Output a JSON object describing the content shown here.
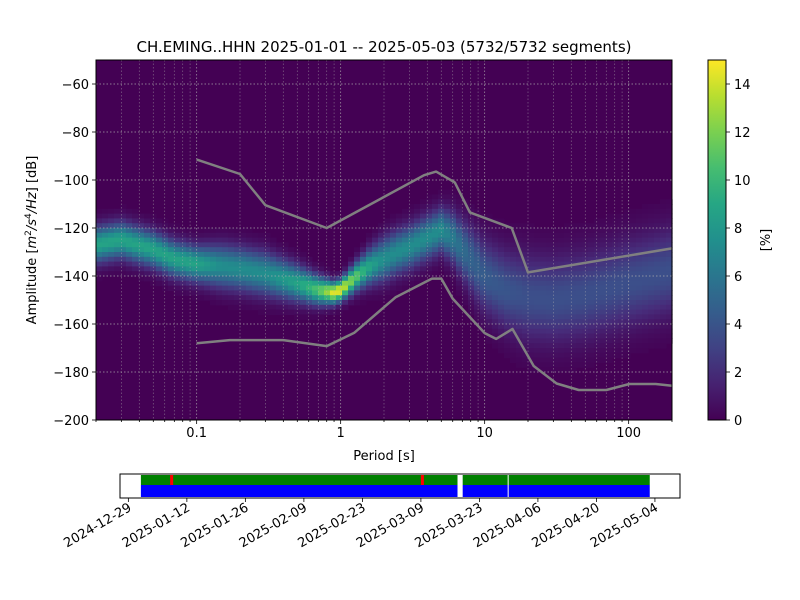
{
  "chart_data": [
    {
      "type": "heatmap",
      "title": "CH.EMING..HHN   2025-01-01 -- 2025-05-03  (5732/5732 segments)",
      "xlabel": "Period [s]",
      "ylabel_parts": [
        "Amplitude [",
        "m",
        "2",
        "/s",
        "4",
        "/Hz",
        "] [dB]"
      ],
      "x_scale": "log",
      "xlim": [
        0.02,
        200
      ],
      "ylim": [
        -200,
        -50
      ],
      "x_ticks": [
        {
          "value": 0.1,
          "label": "0.1"
        },
        {
          "value": 1,
          "label": "1"
        },
        {
          "value": 10,
          "label": "10"
        },
        {
          "value": 100,
          "label": "100"
        }
      ],
      "y_ticks": [
        {
          "value": -60,
          "label": "−60"
        },
        {
          "value": -80,
          "label": "−80"
        },
        {
          "value": -100,
          "label": "−100"
        },
        {
          "value": -120,
          "label": "−120"
        },
        {
          "value": -140,
          "label": "−140"
        },
        {
          "value": -160,
          "label": "−160"
        },
        {
          "value": -180,
          "label": "−180"
        },
        {
          "value": -200,
          "label": "−200"
        }
      ],
      "grid": true,
      "colormap": "viridis",
      "colorbar": {
        "label": "[%]",
        "range": [
          0,
          15
        ],
        "ticks": [
          {
            "value": 0,
            "label": "0"
          },
          {
            "value": 2,
            "label": "2"
          },
          {
            "value": 4,
            "label": "4"
          },
          {
            "value": 6,
            "label": "6"
          },
          {
            "value": 8,
            "label": "8"
          },
          {
            "value": 10,
            "label": "10"
          },
          {
            "value": 12,
            "label": "12"
          },
          {
            "value": 14,
            "label": "14"
          }
        ]
      },
      "psd_mode_curve": {
        "periods": [
          0.02,
          0.03,
          0.05,
          0.07,
          0.1,
          0.15,
          0.2,
          0.3,
          0.5,
          0.7,
          0.9,
          1.0,
          1.3,
          1.6,
          2,
          2.5,
          3,
          4,
          5,
          6,
          8,
          10,
          14,
          20,
          30,
          50,
          100,
          200
        ],
        "db": [
          -127,
          -125,
          -129,
          -133,
          -135,
          -136,
          -137,
          -139,
          -143,
          -146,
          -147,
          -146,
          -140,
          -136,
          -133,
          -130,
          -128,
          -124,
          -121,
          -124,
          -133,
          -140,
          -146,
          -149,
          -150,
          -148,
          -143,
          -138
        ],
        "spread_db": [
          5,
          5,
          5,
          5,
          5,
          6,
          6,
          6,
          5,
          4,
          3,
          3,
          4,
          5,
          6,
          6,
          6,
          6,
          6,
          7,
          9,
          10,
          11,
          12,
          12,
          12,
          12,
          12
        ]
      },
      "series": [
        {
          "periods": [
            0.1,
            0.2,
            0.3,
            0.8,
            3.8,
            4.6,
            6.2,
            7.9,
            15.4,
            20,
            200
          ],
          "db": [
            -91.5,
            -97.5,
            -110.5,
            -120,
            -98,
            -96.5,
            -101,
            -113.5,
            -120,
            -138.5,
            -128.5
          ]
        },
        {
          "periods": [
            0.1,
            0.17,
            0.4,
            0.8,
            1.24,
            2.4,
            4.3,
            5.0,
            6.0,
            10,
            12,
            15.6,
            21.9,
            31.6,
            45,
            70,
            101,
            154,
            200
          ],
          "db": [
            -168,
            -166.7,
            -166.7,
            -169.2,
            -163.7,
            -148.9,
            -141.1,
            -141.1,
            -149.4,
            -163.8,
            -166.2,
            -162.1,
            -177.5,
            -184.8,
            -187.5,
            -187.5,
            -185,
            -185,
            -185.7
          ]
        }
      ]
    },
    {
      "type": "timeline",
      "date_range": [
        "2024-12-27",
        "2025-05-10"
      ],
      "tick_labels": [
        "2024-12-29",
        "2025-01-12",
        "2025-01-26",
        "2025-02-09",
        "2025-02-23",
        "2025-03-09",
        "2025-03-23",
        "2025-04-06",
        "2025-04-20",
        "2025-05-04"
      ],
      "data_color": "#0000ff",
      "used_color": "#008000",
      "flag_color": "#ff0000",
      "coverage": [
        {
          "start": "2025-01-01",
          "end": "2025-03-18"
        },
        {
          "start": "2025-03-19",
          "end": "2025-03-30"
        },
        {
          "start": "2025-03-30",
          "end": "2025-05-03"
        }
      ],
      "flags": [
        "2025-01-08",
        "2025-03-09"
      ]
    }
  ]
}
